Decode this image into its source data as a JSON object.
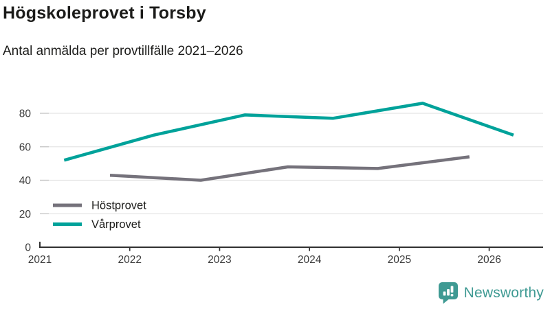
{
  "header": {
    "title": "Högskoleprovet i Torsby",
    "subtitle": "Antal anmälda per provtillfälle 2021–2026"
  },
  "footer": {
    "brand": "Newsworthy",
    "brand_color": "#3f9a93"
  },
  "chart_data": {
    "type": "line",
    "title": "Högskoleprovet i Torsby",
    "subtitle": "Antal anmälda per provtillfälle 2021–2026",
    "xlabel": "",
    "ylabel": "Antal anmälda",
    "x_ticks": [
      2021,
      2022,
      2023,
      2024,
      2025,
      2026
    ],
    "y_ticks": [
      0,
      20,
      40,
      60,
      80
    ],
    "x_range": [
      2021,
      2026.6
    ],
    "y_range": [
      0,
      90
    ],
    "grid": true,
    "legend_position": "inside-bottom-left",
    "series": [
      {
        "name": "Höstprovet",
        "color": "#75727b",
        "x": [
          2021.78,
          2022.79,
          2023.76,
          2024.76,
          2025.78
        ],
        "values": [
          43,
          40,
          48,
          47,
          54
        ]
      },
      {
        "name": "Vårprovet",
        "color": "#00a29a",
        "x": [
          2021.27,
          2022.27,
          2023.28,
          2024.26,
          2025.26,
          2026.27
        ],
        "values": [
          52,
          67,
          79,
          77,
          86,
          67
        ]
      }
    ]
  }
}
